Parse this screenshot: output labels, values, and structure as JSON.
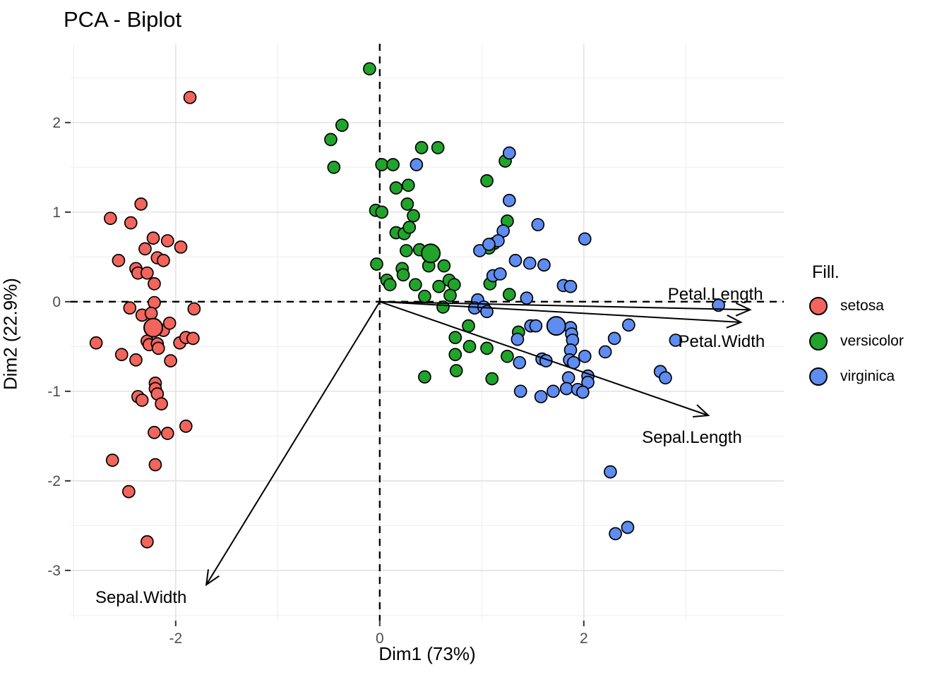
{
  "title": "PCA - Biplot",
  "chart_data": {
    "type": "scatter",
    "title": "PCA - Biplot",
    "xlabel": "Dim1 (73%)",
    "ylabel": "Dim2 (22.9%)",
    "xlim": [
      -3.03,
      3.96
    ],
    "ylim": [
      -3.56,
      2.88
    ],
    "x_ticks": [
      -2,
      0,
      2
    ],
    "x_minor": [
      -3,
      -1,
      1,
      3
    ],
    "y_ticks": [
      2,
      1,
      0,
      -1,
      -2,
      -3
    ],
    "y_minor": [
      -3.5,
      -2.5,
      -1.5,
      -0.5,
      0.5,
      1.5,
      2.5
    ],
    "grid": "major+minor",
    "reference_lines": {
      "x": 0,
      "y": 0,
      "style": "dashed"
    },
    "legend_position": "right",
    "point_radius": 8.5,
    "centroid_radius": 13,
    "colors": {
      "grid_major": "#e4e4e4",
      "grid_minor": "#f1f1f1",
      "axis_text": "#4d4d4d",
      "reference": "#000000",
      "vector": "#000000",
      "point_stroke": "#000000"
    },
    "series": [
      {
        "name": "setosa",
        "color": "#f1655c",
        "centroid": [
          -2.22,
          -0.29
        ],
        "points": [
          [
            -1.86,
            2.28
          ],
          [
            -2.34,
            1.09
          ],
          [
            -2.64,
            0.93
          ],
          [
            -2.44,
            0.88
          ],
          [
            -2.22,
            0.71
          ],
          [
            -2.08,
            0.68
          ],
          [
            -2.3,
            0.59
          ],
          [
            -1.95,
            0.61
          ],
          [
            -2.56,
            0.46
          ],
          [
            -2.18,
            0.49
          ],
          [
            -2.12,
            0.46
          ],
          [
            -2.39,
            0.37
          ],
          [
            -2.37,
            0.32
          ],
          [
            -2.28,
            0.32
          ],
          [
            -2.21,
            0.2
          ],
          [
            -2.21,
            -0.01
          ],
          [
            -2.45,
            -0.07
          ],
          [
            -1.82,
            -0.08
          ],
          [
            -2.33,
            -0.15
          ],
          [
            -2.24,
            -0.13
          ],
          [
            -2.12,
            -0.32
          ],
          [
            -2.06,
            -0.24
          ],
          [
            -2.78,
            -0.46
          ],
          [
            -2.28,
            -0.44
          ],
          [
            -2.26,
            -0.48
          ],
          [
            -2.18,
            -0.47
          ],
          [
            -2.17,
            -0.52
          ],
          [
            -1.96,
            -0.46
          ],
          [
            -1.9,
            -0.4
          ],
          [
            -1.83,
            -0.41
          ],
          [
            -2.53,
            -0.59
          ],
          [
            -2.39,
            -0.65
          ],
          [
            -2.05,
            -0.66
          ],
          [
            -2.2,
            -0.91
          ],
          [
            -2.2,
            -0.97
          ],
          [
            -2.18,
            -1.03
          ],
          [
            -2.37,
            -1.06
          ],
          [
            -2.33,
            -1.1
          ],
          [
            -2.14,
            -1.14
          ],
          [
            -1.9,
            -1.39
          ],
          [
            -2.21,
            -1.46
          ],
          [
            -2.08,
            -1.47
          ],
          [
            -2.62,
            -1.77
          ],
          [
            -2.2,
            -1.82
          ],
          [
            -2.46,
            -2.12
          ],
          [
            -2.28,
            -2.68
          ]
        ]
      },
      {
        "name": "versicolor",
        "color": "#20a42b",
        "centroid": [
          0.5,
          0.54
        ],
        "points": [
          [
            -0.1,
            2.6
          ],
          [
            -0.37,
            1.97
          ],
          [
            -0.48,
            1.81
          ],
          [
            -0.45,
            1.5
          ],
          [
            0.02,
            1.53
          ],
          [
            0.13,
            1.53
          ],
          [
            0.41,
            1.72
          ],
          [
            0.57,
            1.72
          ],
          [
            1.23,
            1.57
          ],
          [
            1.05,
            1.35
          ],
          [
            -0.04,
            1.02
          ],
          [
            0.02,
            1.0
          ],
          [
            0.16,
            1.27
          ],
          [
            0.28,
            1.3
          ],
          [
            0.27,
            1.09
          ],
          [
            0.33,
            0.96
          ],
          [
            1.25,
            0.9
          ],
          [
            0.16,
            0.77
          ],
          [
            0.24,
            0.76
          ],
          [
            0.29,
            0.83
          ],
          [
            0.26,
            0.57
          ],
          [
            0.39,
            0.58
          ],
          [
            0.48,
            0.4
          ],
          [
            0.63,
            0.4
          ],
          [
            -0.03,
            0.42
          ],
          [
            0.22,
            0.37
          ],
          [
            0.23,
            0.3
          ],
          [
            0.07,
            0.24
          ],
          [
            0.1,
            0.19
          ],
          [
            0.35,
            0.19
          ],
          [
            0.58,
            0.17
          ],
          [
            0.68,
            0.24
          ],
          [
            0.73,
            0.19
          ],
          [
            0.44,
            0.06
          ],
          [
            0.69,
            0.07
          ],
          [
            0.62,
            -0.06
          ],
          [
            1.12,
            0.65
          ],
          [
            1.07,
            0.6
          ],
          [
            1.08,
            0.2
          ],
          [
            1.27,
            0.08
          ],
          [
            0.87,
            -0.27
          ],
          [
            1.36,
            -0.34
          ],
          [
            0.74,
            -0.4
          ],
          [
            0.88,
            -0.5
          ],
          [
            1.05,
            -0.52
          ],
          [
            1.25,
            -0.61
          ],
          [
            0.74,
            -0.59
          ],
          [
            0.75,
            -0.77
          ],
          [
            0.44,
            -0.84
          ],
          [
            1.1,
            -0.86
          ]
        ]
      },
      {
        "name": "virginica",
        "color": "#5e8cf1",
        "centroid": [
          1.73,
          -0.27
        ],
        "points": [
          [
            0.36,
            1.53
          ],
          [
            1.27,
            1.66
          ],
          [
            1.27,
            1.13
          ],
          [
            1.21,
            0.79
          ],
          [
            1.55,
            0.86
          ],
          [
            2.01,
            0.7
          ],
          [
            1.16,
            0.68
          ],
          [
            0.98,
            0.57
          ],
          [
            1.07,
            0.64
          ],
          [
            1.33,
            0.46
          ],
          [
            1.47,
            0.43
          ],
          [
            1.61,
            0.41
          ],
          [
            1.11,
            0.29
          ],
          [
            1.18,
            0.31
          ],
          [
            1.8,
            0.18
          ],
          [
            1.87,
            0.17
          ],
          [
            1.44,
            0.04
          ],
          [
            0.96,
            0.02
          ],
          [
            0.93,
            -0.07
          ],
          [
            1.02,
            -0.06
          ],
          [
            3.32,
            -0.04
          ],
          [
            1.05,
            -0.11
          ],
          [
            1.48,
            -0.27
          ],
          [
            1.53,
            -0.27
          ],
          [
            1.87,
            -0.29
          ],
          [
            1.88,
            -0.36
          ],
          [
            1.89,
            -0.43
          ],
          [
            1.35,
            -0.42
          ],
          [
            2.44,
            -0.26
          ],
          [
            2.3,
            -0.41
          ],
          [
            2.9,
            -0.43
          ],
          [
            2.21,
            -0.56
          ],
          [
            2.01,
            -0.61
          ],
          [
            1.87,
            -0.54
          ],
          [
            1.37,
            -0.68
          ],
          [
            1.59,
            -0.64
          ],
          [
            1.63,
            -0.66
          ],
          [
            1.86,
            -0.65
          ],
          [
            1.9,
            -0.68
          ],
          [
            1.85,
            -0.85
          ],
          [
            2.04,
            -0.83
          ],
          [
            2.04,
            -0.9
          ],
          [
            2.75,
            -0.78
          ],
          [
            2.8,
            -0.85
          ],
          [
            1.38,
            -1.0
          ],
          [
            1.58,
            -1.06
          ],
          [
            1.7,
            -1.0
          ],
          [
            1.83,
            -0.97
          ],
          [
            1.94,
            -0.98
          ],
          [
            1.99,
            -1.01
          ],
          [
            2.26,
            -1.9
          ],
          [
            2.31,
            -2.59
          ],
          [
            2.43,
            -2.52
          ]
        ]
      }
    ],
    "vectors": [
      {
        "name": "Petal.Length",
        "from": [
          0,
          0
        ],
        "to": [
          3.63,
          -0.09
        ],
        "label_at": [
          3.29,
          0.08
        ]
      },
      {
        "name": "Petal.Width",
        "from": [
          0,
          0
        ],
        "to": [
          3.54,
          -0.23
        ],
        "label_at": [
          3.35,
          -0.45
        ]
      },
      {
        "name": "Sepal.Length",
        "from": [
          0,
          0
        ],
        "to": [
          3.22,
          -1.27
        ],
        "label_at": [
          3.06,
          -1.52
        ]
      },
      {
        "name": "Sepal.Width",
        "from": [
          0,
          0
        ],
        "to": [
          -1.7,
          -3.16
        ],
        "label_at": [
          -2.34,
          -3.31
        ]
      }
    ]
  },
  "legend": {
    "title": "Fill.",
    "items": [
      {
        "label": "setosa",
        "color": "#f1655c"
      },
      {
        "label": "versicolor",
        "color": "#20a42b"
      },
      {
        "label": "virginica",
        "color": "#5e8cf1"
      }
    ]
  }
}
